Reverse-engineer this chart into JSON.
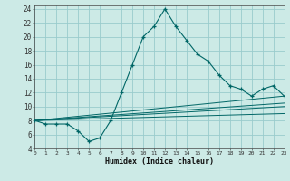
{
  "xlabel": "Humidex (Indice chaleur)",
  "bg_color": "#cceae6",
  "grid_color": "#99cccc",
  "line_color": "#006666",
  "xlim": [
    0,
    23
  ],
  "ylim": [
    4,
    24.5
  ],
  "xticks": [
    0,
    1,
    2,
    3,
    4,
    5,
    6,
    7,
    8,
    9,
    10,
    11,
    12,
    13,
    14,
    15,
    16,
    17,
    18,
    19,
    20,
    21,
    22,
    23
  ],
  "yticks": [
    4,
    6,
    8,
    10,
    12,
    14,
    16,
    18,
    20,
    22,
    24
  ],
  "main_curve_x": [
    0,
    1,
    2,
    3,
    4,
    5,
    6,
    7,
    8,
    9,
    10,
    11,
    12,
    13,
    14,
    15,
    16,
    17,
    18,
    19,
    20,
    21,
    22,
    23
  ],
  "main_curve_y": [
    8.0,
    7.5,
    7.5,
    7.5,
    6.5,
    5.0,
    5.5,
    8.0,
    12.0,
    16.0,
    20.0,
    21.5,
    24.0,
    21.5,
    19.5,
    17.5,
    16.5,
    14.5,
    13.0,
    12.5,
    11.5,
    12.5,
    13.0,
    11.5
  ],
  "linear_lines": [
    {
      "x": [
        0,
        23
      ],
      "y": [
        8.0,
        10.0
      ]
    },
    {
      "x": [
        0,
        23
      ],
      "y": [
        8.0,
        10.5
      ]
    },
    {
      "x": [
        0,
        23
      ],
      "y": [
        8.0,
        9.0
      ]
    },
    {
      "x": [
        0,
        23
      ],
      "y": [
        8.0,
        11.5
      ]
    }
  ]
}
